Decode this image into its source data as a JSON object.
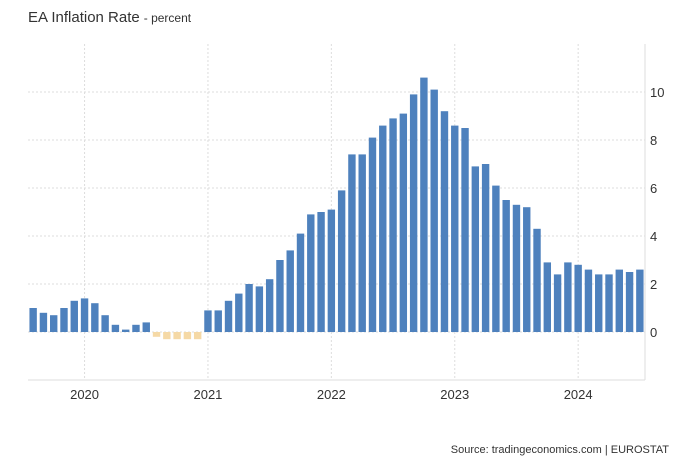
{
  "chart_data": {
    "type": "bar",
    "title": "EA Inflation Rate",
    "subtitle": "- percent",
    "source": "Source: tradingeconomics.com | EUROSTAT",
    "ylim": [
      -2,
      12
    ],
    "yticks": [
      0,
      2,
      4,
      6,
      8,
      10
    ],
    "ytick_labels": [
      "0",
      "2",
      "4",
      "6",
      "8",
      "10"
    ],
    "x_year_labels": [
      "2020",
      "2021",
      "2022",
      "2023",
      "2024"
    ],
    "grid": true,
    "colors": {
      "positive": "#4e81bd",
      "negative": "#f5d9a6",
      "grid": "#dddddd",
      "axis": "#dddddd"
    },
    "x": [
      "2019-08",
      "2019-09",
      "2019-10",
      "2019-11",
      "2019-12",
      "2020-01",
      "2020-02",
      "2020-03",
      "2020-04",
      "2020-05",
      "2020-06",
      "2020-07",
      "2020-08",
      "2020-09",
      "2020-10",
      "2020-11",
      "2020-12",
      "2021-01",
      "2021-02",
      "2021-03",
      "2021-04",
      "2021-05",
      "2021-06",
      "2021-07",
      "2021-08",
      "2021-09",
      "2021-10",
      "2021-11",
      "2021-12",
      "2022-01",
      "2022-02",
      "2022-03",
      "2022-04",
      "2022-05",
      "2022-06",
      "2022-07",
      "2022-08",
      "2022-09",
      "2022-10",
      "2022-11",
      "2022-12",
      "2023-01",
      "2023-02",
      "2023-03",
      "2023-04",
      "2023-05",
      "2023-06",
      "2023-07",
      "2023-08",
      "2023-09",
      "2023-10",
      "2023-11",
      "2023-12",
      "2024-01",
      "2024-02",
      "2024-03",
      "2024-04",
      "2024-05",
      "2024-06",
      "2024-07"
    ],
    "values": [
      1.0,
      0.8,
      0.7,
      1.0,
      1.3,
      1.4,
      1.2,
      0.7,
      0.3,
      0.1,
      0.3,
      0.4,
      -0.2,
      -0.3,
      -0.3,
      -0.3,
      -0.3,
      0.9,
      0.9,
      1.3,
      1.6,
      2.0,
      1.9,
      2.2,
      3.0,
      3.4,
      4.1,
      4.9,
      5.0,
      5.1,
      5.9,
      7.4,
      7.4,
      8.1,
      8.6,
      8.9,
      9.1,
      9.9,
      10.6,
      10.1,
      9.2,
      8.6,
      8.5,
      6.9,
      7.0,
      6.1,
      5.5,
      5.3,
      5.2,
      4.3,
      2.9,
      2.4,
      2.9,
      2.8,
      2.6,
      2.4,
      2.4,
      2.6,
      2.5,
      2.6
    ]
  }
}
